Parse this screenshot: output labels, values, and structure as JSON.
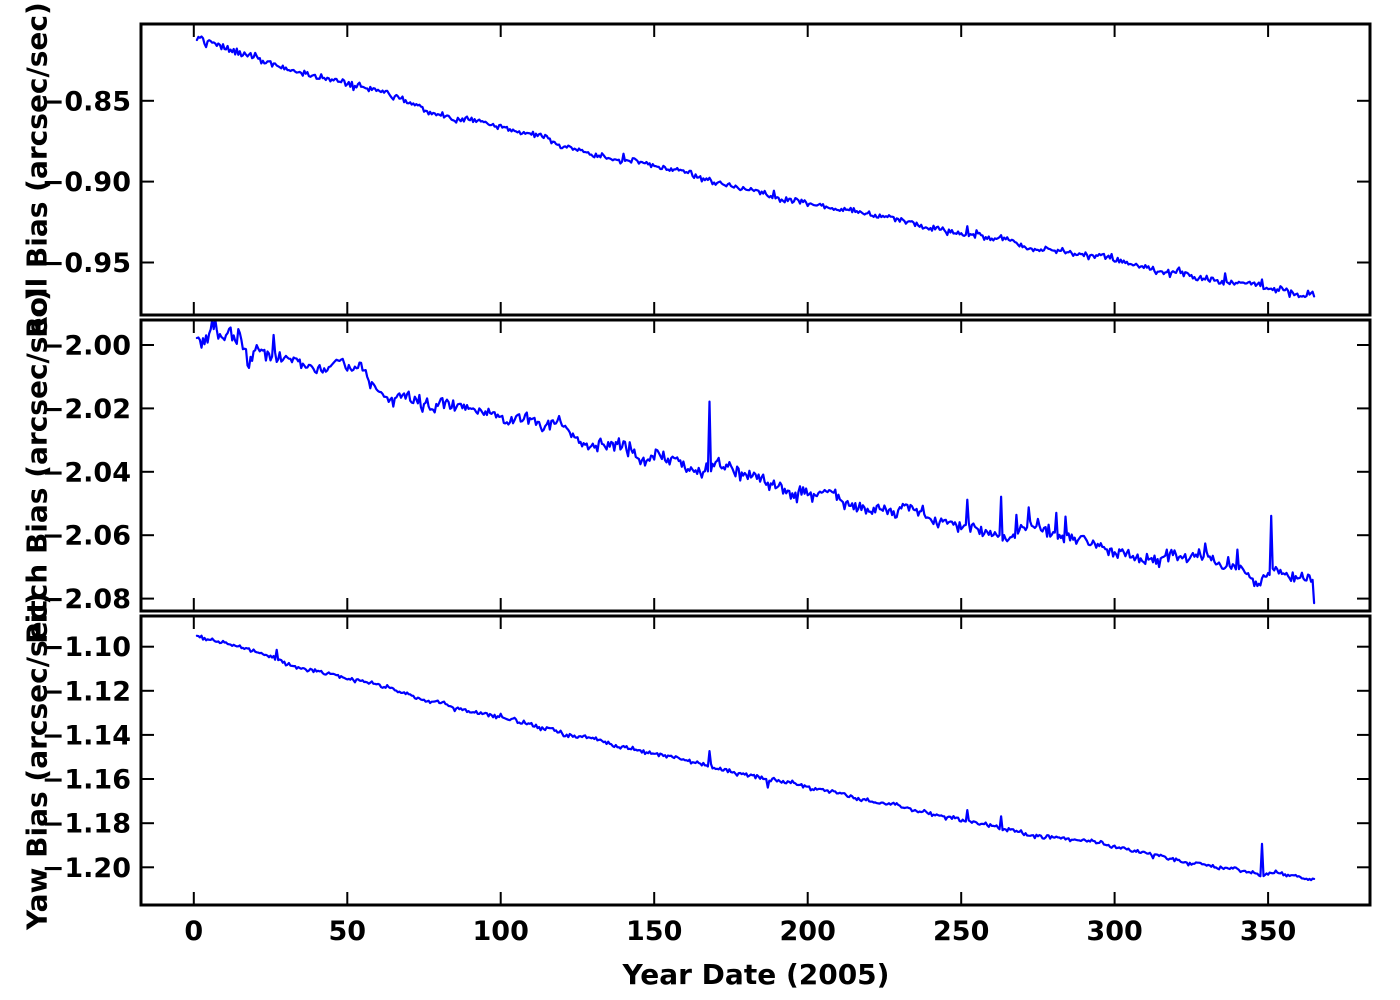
{
  "chart_data": {
    "type": "line",
    "title": "",
    "xlabel": "Year Date (2005)",
    "line_color": "#0000FF",
    "axis_color": "#000000",
    "background": "#ffffff",
    "grid": false,
    "legend": null,
    "x_axis": {
      "min": -17.2,
      "max": 383.2,
      "tick_values": [
        0,
        50,
        100,
        150,
        200,
        250,
        300,
        350
      ],
      "tick_labels": [
        "0",
        "50",
        "100",
        "150",
        "200",
        "250",
        "300",
        "350"
      ]
    },
    "panels": [
      {
        "name": "roll",
        "ylabel": "Roll Bias (arcsec/sec)",
        "ylim": [
          -0.9825,
          -0.8025
        ],
        "ytick_values": [
          -0.85,
          -0.9,
          -0.95
        ],
        "ytick_labels": [
          "−0.85",
          "−0.90",
          "−0.95"
        ],
        "anchors": [
          [
            1,
            -0.8115
          ],
          [
            5,
            -0.8135
          ],
          [
            10,
            -0.8168
          ],
          [
            15,
            -0.8205
          ],
          [
            20,
            -0.8228
          ],
          [
            25,
            -0.8265
          ],
          [
            30,
            -0.8282
          ],
          [
            35,
            -0.8308
          ],
          [
            40,
            -0.8342
          ],
          [
            50,
            -0.8398
          ],
          [
            60,
            -0.8452
          ],
          [
            70,
            -0.8508
          ],
          [
            80,
            -0.8558
          ],
          [
            90,
            -0.8608
          ],
          [
            100,
            -0.866
          ],
          [
            110,
            -0.87
          ],
          [
            115,
            -0.8718
          ],
          [
            120,
            -0.8758
          ],
          [
            130,
            -0.8808
          ],
          [
            140,
            -0.8855
          ],
          [
            150,
            -0.89
          ],
          [
            160,
            -0.8948
          ],
          [
            170,
            -0.899
          ],
          [
            180,
            -0.9035
          ],
          [
            190,
            -0.908
          ],
          [
            200,
            -0.9122
          ],
          [
            210,
            -0.9162
          ],
          [
            220,
            -0.92
          ],
          [
            230,
            -0.9232
          ],
          [
            240,
            -0.927
          ],
          [
            250,
            -0.931
          ],
          [
            255,
            -0.932
          ],
          [
            260,
            -0.935
          ],
          [
            265,
            -0.9357
          ],
          [
            270,
            -0.9388
          ],
          [
            280,
            -0.9425
          ],
          [
            290,
            -0.9458
          ],
          [
            300,
            -0.9495
          ],
          [
            310,
            -0.9535
          ],
          [
            320,
            -0.9575
          ],
          [
            330,
            -0.9605
          ],
          [
            340,
            -0.963
          ],
          [
            350,
            -0.9655
          ],
          [
            360,
            -0.968
          ],
          [
            365,
            -0.9693
          ]
        ],
        "spikes": [
          [
            140,
            0.003
          ],
          [
            168,
            0.004
          ],
          [
            189,
            0.0045
          ],
          [
            252,
            0.0035
          ],
          [
            263,
            0.003
          ],
          [
            310,
            0.003
          ],
          [
            336,
            0.0055
          ],
          [
            348,
            0.0045
          ],
          [
            357,
            -0.004
          ]
        ],
        "noise_sigma": 0.0009,
        "ar_sigma": 0.00035,
        "ar_rho": 0.965,
        "noise_boost": [
          20,
          1.5
        ],
        "seed": 101
      },
      {
        "name": "pitch",
        "ylabel": "Pitch Bias (arcsec/sec)",
        "ylim": [
          -2.0839,
          -1.9921
        ],
        "ytick_values": [
          -2.0,
          -2.02,
          -2.04,
          -2.06,
          -2.08
        ],
        "ytick_labels": [
          "−2.00",
          "−2.02",
          "−2.04",
          "−2.06",
          "−2.08"
        ],
        "anchors": [
          [
            1,
            -1.996
          ],
          [
            3,
            -2.0005
          ],
          [
            6,
            -1.9975
          ],
          [
            9,
            -2.001
          ],
          [
            12,
            -1.998
          ],
          [
            15,
            -1.9985
          ],
          [
            18,
            -2.003
          ],
          [
            21,
            -1.9995
          ],
          [
            24,
            -2.0015
          ],
          [
            28,
            -2.0045
          ],
          [
            32,
            -2.005
          ],
          [
            36,
            -2.0065
          ],
          [
            40,
            -2.008
          ],
          [
            45,
            -2.0085
          ],
          [
            50,
            -2.0105
          ],
          [
            55,
            -2.012
          ],
          [
            58,
            -2.0145
          ],
          [
            62,
            -2.0165
          ],
          [
            66,
            -2.0175
          ],
          [
            70,
            -2.019
          ],
          [
            75,
            -2.019
          ],
          [
            80,
            -2.0195
          ],
          [
            85,
            -2.0215
          ],
          [
            90,
            -2.021
          ],
          [
            95,
            -2.023
          ],
          [
            100,
            -2.024
          ],
          [
            105,
            -2.0245
          ],
          [
            110,
            -2.025
          ],
          [
            114,
            -2.0255
          ],
          [
            118,
            -2.024
          ],
          [
            122,
            -2.0285
          ],
          [
            126,
            -2.03
          ],
          [
            130,
            -2.0315
          ],
          [
            135,
            -2.033
          ],
          [
            140,
            -2.033
          ],
          [
            145,
            -2.034
          ],
          [
            150,
            -2.0335
          ],
          [
            155,
            -2.0345
          ],
          [
            160,
            -2.037
          ],
          [
            165,
            -2.0395
          ],
          [
            170,
            -2.0405
          ],
          [
            175,
            -2.041
          ],
          [
            180,
            -2.042
          ],
          [
            185,
            -2.043
          ],
          [
            190,
            -2.0445
          ],
          [
            195,
            -2.045
          ],
          [
            200,
            -2.046
          ],
          [
            205,
            -2.047
          ],
          [
            210,
            -2.0482
          ],
          [
            215,
            -2.0495
          ],
          [
            220,
            -2.0505
          ],
          [
            225,
            -2.051
          ],
          [
            230,
            -2.052
          ],
          [
            235,
            -2.0535
          ],
          [
            240,
            -2.0545
          ],
          [
            245,
            -2.0555
          ],
          [
            250,
            -2.056
          ],
          [
            255,
            -2.057
          ],
          [
            260,
            -2.0575
          ],
          [
            265,
            -2.058
          ],
          [
            270,
            -2.0588
          ],
          [
            275,
            -2.0595
          ],
          [
            280,
            -2.06
          ],
          [
            285,
            -2.061
          ],
          [
            288,
            -2.0625
          ],
          [
            292,
            -2.0635
          ],
          [
            296,
            -2.064
          ],
          [
            300,
            -2.065
          ],
          [
            305,
            -2.0655
          ],
          [
            310,
            -2.067
          ],
          [
            315,
            -2.068
          ],
          [
            320,
            -2.0688
          ],
          [
            325,
            -2.0695
          ],
          [
            330,
            -2.07
          ],
          [
            335,
            -2.0712
          ],
          [
            340,
            -2.0718
          ],
          [
            344,
            -2.0745
          ],
          [
            346,
            -2.0775
          ],
          [
            348,
            -2.076
          ],
          [
            352,
            -2.073
          ],
          [
            355,
            -2.0735
          ],
          [
            358,
            -2.0745
          ],
          [
            361,
            -2.074
          ],
          [
            364,
            -2.0745
          ],
          [
            365,
            -2.079
          ]
        ],
        "spikes": [
          [
            26,
            0.0065
          ],
          [
            168,
            0.0175
          ],
          [
            178,
            -0.004
          ],
          [
            252,
            0.008
          ],
          [
            263,
            0.0125
          ],
          [
            268,
            0.005
          ],
          [
            272,
            0.0045
          ],
          [
            281,
            0.006
          ],
          [
            284,
            0.005
          ],
          [
            340,
            0.004
          ],
          [
            351,
            0.017
          ]
        ],
        "noise_sigma": 0.0009,
        "ar_sigma": 0.00045,
        "ar_rho": 0.965,
        "noise_boost": [
          25,
          1.7
        ],
        "seed": 202
      },
      {
        "name": "yaw",
        "ylabel": "Yaw Bias (arcsec/sec)",
        "ylim": [
          -1.2171,
          -1.0861
        ],
        "ytick_values": [
          -1.1,
          -1.12,
          -1.14,
          -1.16,
          -1.18,
          -1.2
        ],
        "ytick_labels": [
          "−1.10",
          "−1.12",
          "−1.14",
          "−1.16",
          "−1.18",
          "−1.20"
        ],
        "anchors": [
          [
            1,
            -1.0945
          ],
          [
            10,
            -1.0981
          ],
          [
            20,
            -1.102
          ],
          [
            27,
            -1.1046
          ],
          [
            30,
            -1.106
          ],
          [
            40,
            -1.1098
          ],
          [
            50,
            -1.1136
          ],
          [
            60,
            -1.1173
          ],
          [
            70,
            -1.121
          ],
          [
            80,
            -1.1246
          ],
          [
            90,
            -1.1282
          ],
          [
            100,
            -1.1317
          ],
          [
            110,
            -1.1352
          ],
          [
            113,
            -1.1368
          ],
          [
            116,
            -1.1358
          ],
          [
            120,
            -1.1386
          ],
          [
            130,
            -1.142
          ],
          [
            140,
            -1.1453
          ],
          [
            150,
            -1.1486
          ],
          [
            160,
            -1.1518
          ],
          [
            170,
            -1.155
          ],
          [
            180,
            -1.1581
          ],
          [
            185,
            -1.16
          ],
          [
            188,
            -1.1612
          ],
          [
            192,
            -1.1618
          ],
          [
            200,
            -1.1642
          ],
          [
            210,
            -1.1671
          ],
          [
            220,
            -1.17
          ],
          [
            224,
            -1.1716
          ],
          [
            228,
            -1.1712
          ],
          [
            232,
            -1.1732
          ],
          [
            240,
            -1.1757
          ],
          [
            250,
            -1.1784
          ],
          [
            260,
            -1.1811
          ],
          [
            270,
            -1.1838
          ],
          [
            280,
            -1.1864
          ],
          [
            290,
            -1.1889
          ],
          [
            300,
            -1.1914
          ],
          [
            310,
            -1.1938
          ],
          [
            320,
            -1.1962
          ],
          [
            330,
            -1.1985
          ],
          [
            340,
            -1.2008
          ],
          [
            345,
            -1.2028
          ],
          [
            348,
            -1.2042
          ],
          [
            352,
            -1.2028
          ],
          [
            355,
            -1.2042
          ],
          [
            360,
            -1.2052
          ],
          [
            365,
            -1.2062
          ]
        ],
        "spikes": [
          [
            27,
            0.004
          ],
          [
            168,
            0.007
          ],
          [
            187,
            -0.0035
          ],
          [
            252,
            0.005
          ],
          [
            263,
            0.0055
          ],
          [
            348,
            0.014
          ]
        ],
        "noise_sigma": 0.00042,
        "ar_sigma": 0.00018,
        "ar_rho": 0.96,
        "noise_boost": [
          0,
          1
        ],
        "seed": 303
      }
    ]
  }
}
